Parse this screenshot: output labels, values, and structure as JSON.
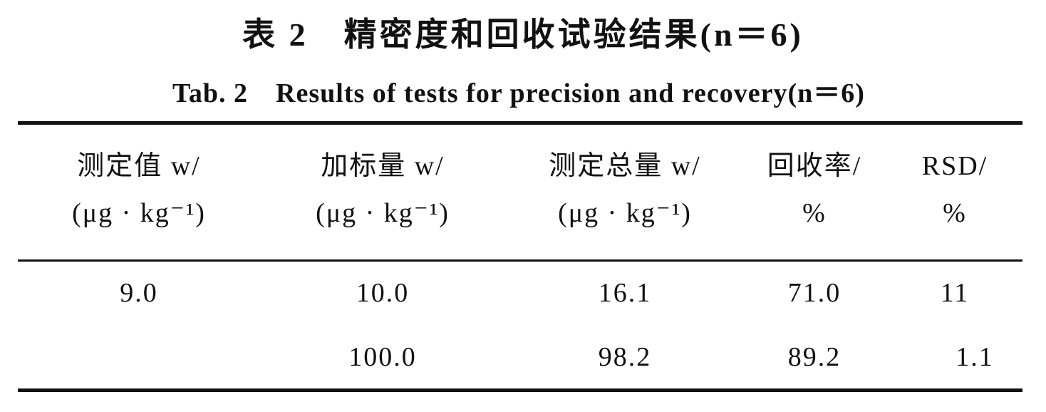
{
  "header": {
    "title_cn": "表 2　精密度和回收试验结果(n＝6)",
    "title_en": "Tab. 2　Results of tests for precision and recovery(n＝6)"
  },
  "table": {
    "columns": [
      [
        "测定值 w/",
        "(μg · kg⁻¹)"
      ],
      [
        "加标量 w/",
        "(μg · kg⁻¹)"
      ],
      [
        "测定总量 w/",
        "(μg · kg⁻¹)"
      ],
      [
        "回收率/",
        "%"
      ],
      [
        "RSD/",
        "%"
      ]
    ],
    "rows": [
      [
        "9.0",
        "10.0",
        "16.1",
        "71.0",
        "11"
      ],
      [
        null,
        "100.0",
        "98.2",
        "89.2",
        "1.1"
      ]
    ]
  }
}
